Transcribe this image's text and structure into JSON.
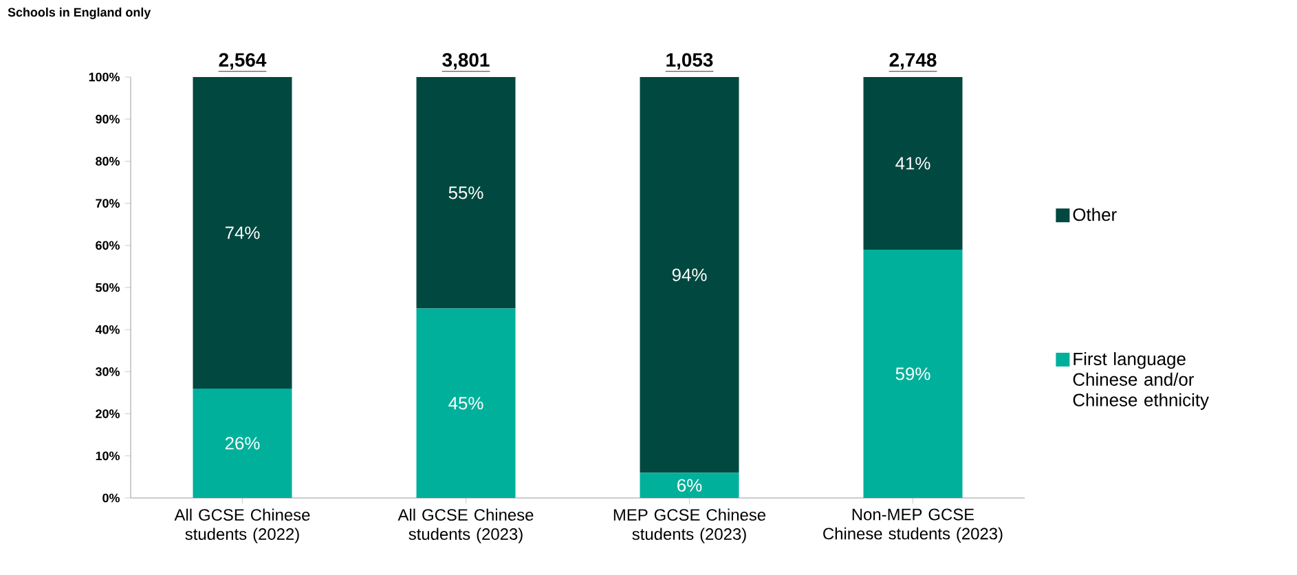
{
  "chart_data": {
    "type": "bar",
    "stacked": true,
    "subtitle": "Schools in England only",
    "categories": [
      "All GCSE Chinese students (2022)",
      "All GCSE Chinese students (2023)",
      "MEP GCSE Chinese students (2023)",
      "Non-MEP GCSE Chinese students (2023)"
    ],
    "series": [
      {
        "name": "First language Chinese and/or Chinese ethnicity",
        "color": "#00b09b",
        "values": [
          26,
          45,
          6,
          59
        ],
        "value_labels": [
          "26%",
          "45%",
          "6%",
          "59%"
        ]
      },
      {
        "name": "Other",
        "color": "#004840",
        "values": [
          74,
          55,
          94,
          41
        ],
        "value_labels": [
          "74%",
          "55%",
          "94%",
          "41%"
        ]
      }
    ],
    "annotations": [
      "2,564",
      "3,801",
      "1,053",
      "2,748"
    ],
    "ylim": [
      0,
      100
    ],
    "yticks": [
      {
        "value": 0,
        "label": "0%"
      },
      {
        "value": 10,
        "label": "10%"
      },
      {
        "value": 20,
        "label": "20%"
      },
      {
        "value": 30,
        "label": "30%"
      },
      {
        "value": 40,
        "label": "40%"
      },
      {
        "value": 50,
        "label": "50%"
      },
      {
        "value": 60,
        "label": "60%"
      },
      {
        "value": 70,
        "label": "70%"
      },
      {
        "value": 80,
        "label": "80%"
      },
      {
        "value": 90,
        "label": "90%"
      },
      {
        "value": 100,
        "label": "100%"
      }
    ],
    "grid": false,
    "legend": "right"
  }
}
